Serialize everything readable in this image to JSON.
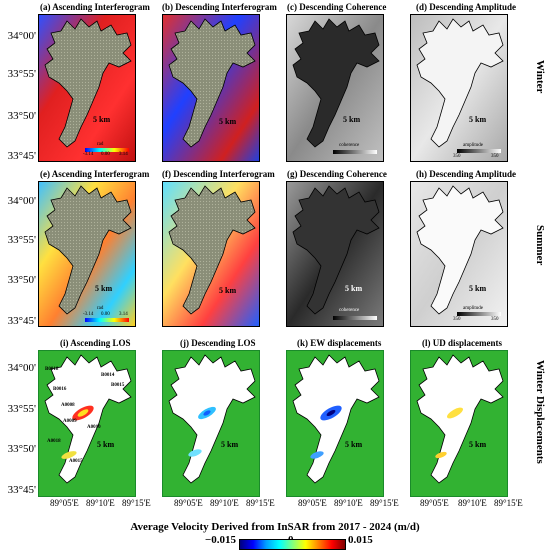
{
  "y_ticks": {
    "row1": [
      "34°00'",
      "33°55'",
      "33°50'",
      "33°45'"
    ],
    "row2": [
      "34°00'",
      "33°55'",
      "33°50'",
      "33°45'"
    ],
    "row3": [
      "34°00'",
      "33°55'",
      "33°50'",
      "33°45'"
    ]
  },
  "panels": {
    "a": "(a) Ascending Interferogram",
    "b": "(b) Descending Interferogram",
    "c": "(c) Descending Coherence",
    "d": "(d) Descending Amplitude",
    "e": "(e) Ascending Interferogram",
    "f": "(f) Descending Interferogram",
    "g": "(g) Descending Coherence",
    "h": "(h) Descending Amplitude",
    "i": "(i) Ascending LOS",
    "j": "(j) Descending LOS",
    "k": "(k) EW displacements",
    "l": "(l) UD displacements"
  },
  "scale_label": "5 km",
  "row_labels": {
    "row1": "Winter",
    "row2": "Summer",
    "row3": "Winter Displacements"
  },
  "inset": {
    "rad_label": "rad",
    "rad_ticks": [
      "-3.14",
      "0.00",
      "3.14"
    ],
    "coherence_label": "coherence",
    "amplitude_label": "amplitude",
    "amplitude_ticks": [
      "350",
      "350"
    ]
  },
  "glacier_ids": [
    "B0018",
    "B0014",
    "A0008",
    "A0009",
    "A0010",
    "A0018",
    "B0015",
    "A0015",
    "B0016"
  ],
  "x_ticks": [
    "89°05'E",
    "89°10'E",
    "89°15'E"
  ],
  "colorbar": {
    "title": "Average Velocity Derived from InSAR from 2017 - 2024 (m/d)",
    "ticks": [
      "−0.015",
      "0",
      "0.015"
    ],
    "colors": [
      "#00007f",
      "#0000ff",
      "#00a0ff",
      "#00ffff",
      "#80ff80",
      "#ffff00",
      "#ff8000",
      "#ff0000",
      "#7f0000"
    ]
  }
}
